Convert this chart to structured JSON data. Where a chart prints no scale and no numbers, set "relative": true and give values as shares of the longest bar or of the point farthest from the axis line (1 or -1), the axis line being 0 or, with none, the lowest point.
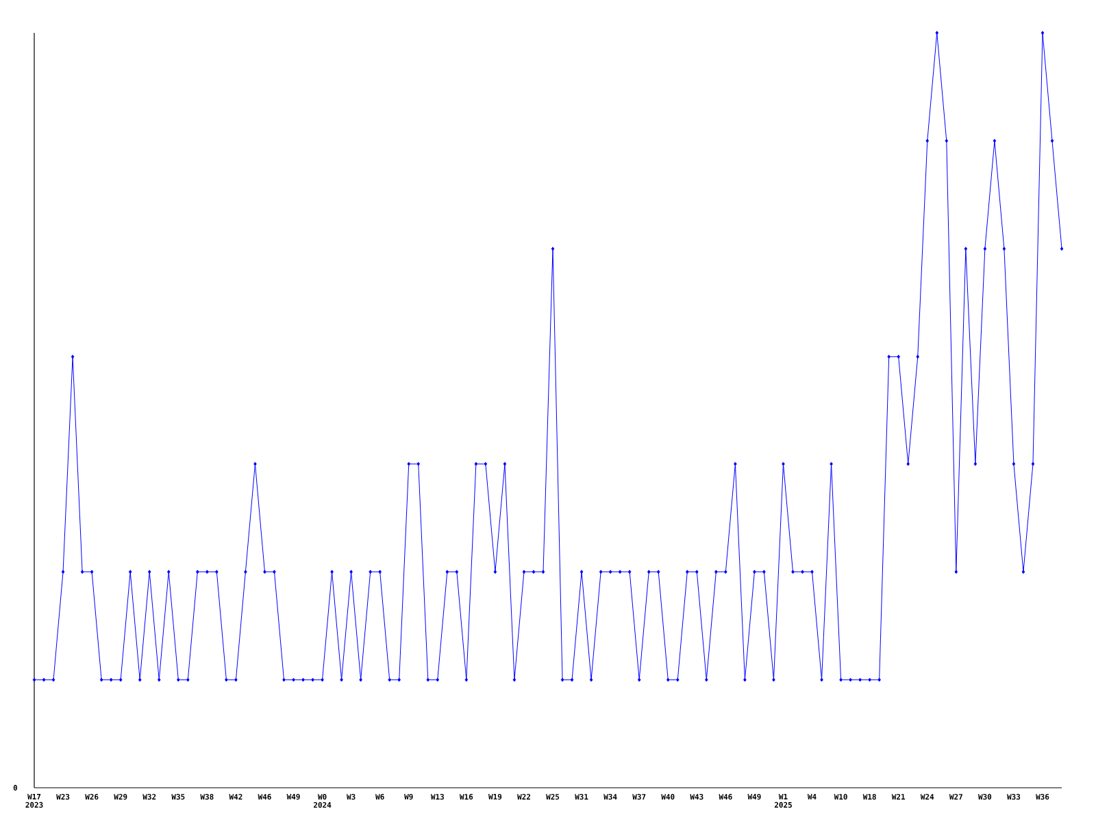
{
  "chart_data": {
    "type": "line",
    "relative": true,
    "color": "#0000ff",
    "marker": "diamond",
    "line_style": "solid",
    "categories": [
      "W17 2023",
      null,
      null,
      "W23",
      null,
      null,
      "W26",
      null,
      null,
      "W29",
      null,
      null,
      "W32",
      null,
      null,
      "W35",
      null,
      null,
      "W38",
      null,
      null,
      "W42",
      null,
      null,
      "W46",
      null,
      null,
      "W49",
      null,
      null,
      "W0 2024",
      null,
      null,
      "W3",
      null,
      null,
      "W6",
      null,
      null,
      "W9",
      null,
      null,
      "W13",
      null,
      null,
      "W16",
      null,
      null,
      "W19",
      null,
      null,
      "W22",
      null,
      null,
      "W25",
      null,
      null,
      "W31",
      null,
      null,
      "W34",
      null,
      null,
      "W37",
      null,
      null,
      "W40",
      null,
      null,
      "W43",
      null,
      null,
      "W46",
      null,
      null,
      "W49",
      null,
      null,
      "W1 2025",
      null,
      null,
      "W4",
      null,
      null,
      "W10",
      null,
      null,
      "W18",
      null,
      null,
      "W21",
      null,
      null,
      "W24",
      null,
      null,
      "W27",
      null,
      null,
      "W30",
      null,
      null,
      "W33",
      null,
      null,
      "W36",
      null,
      null
    ],
    "values": [
      0.143,
      0.143,
      0.143,
      0.286,
      0.571,
      0.286,
      0.286,
      0.143,
      0.143,
      0.143,
      0.286,
      0.143,
      0.286,
      0.143,
      0.286,
      0.143,
      0.143,
      0.286,
      0.286,
      0.286,
      0.143,
      0.143,
      0.286,
      0.429,
      0.286,
      0.286,
      0.143,
      0.143,
      0.143,
      0.143,
      0.143,
      0.286,
      0.143,
      0.286,
      0.143,
      0.286,
      0.286,
      0.143,
      0.143,
      0.429,
      0.429,
      0.143,
      0.143,
      0.286,
      0.286,
      0.143,
      0.429,
      0.429,
      0.286,
      0.429,
      0.143,
      0.286,
      0.286,
      0.286,
      0.714,
      0.143,
      0.143,
      0.286,
      0.143,
      0.286,
      0.286,
      0.286,
      0.286,
      0.143,
      0.286,
      0.286,
      0.143,
      0.143,
      0.286,
      0.286,
      0.143,
      0.286,
      0.286,
      0.429,
      0.143,
      0.286,
      0.286,
      0.143,
      0.429,
      0.286,
      0.286,
      0.286,
      0.143,
      0.429,
      0.143,
      0.143,
      0.143,
      0.143,
      0.143,
      0.571,
      0.571,
      0.429,
      0.571,
      0.857,
      1,
      0.857,
      0.286,
      0.714,
      0.429,
      0.714,
      0.857,
      0.714,
      0.429,
      0.286,
      0.429,
      1,
      0.857,
      0.714
    ],
    "annotations": [
      "0"
    ]
  }
}
